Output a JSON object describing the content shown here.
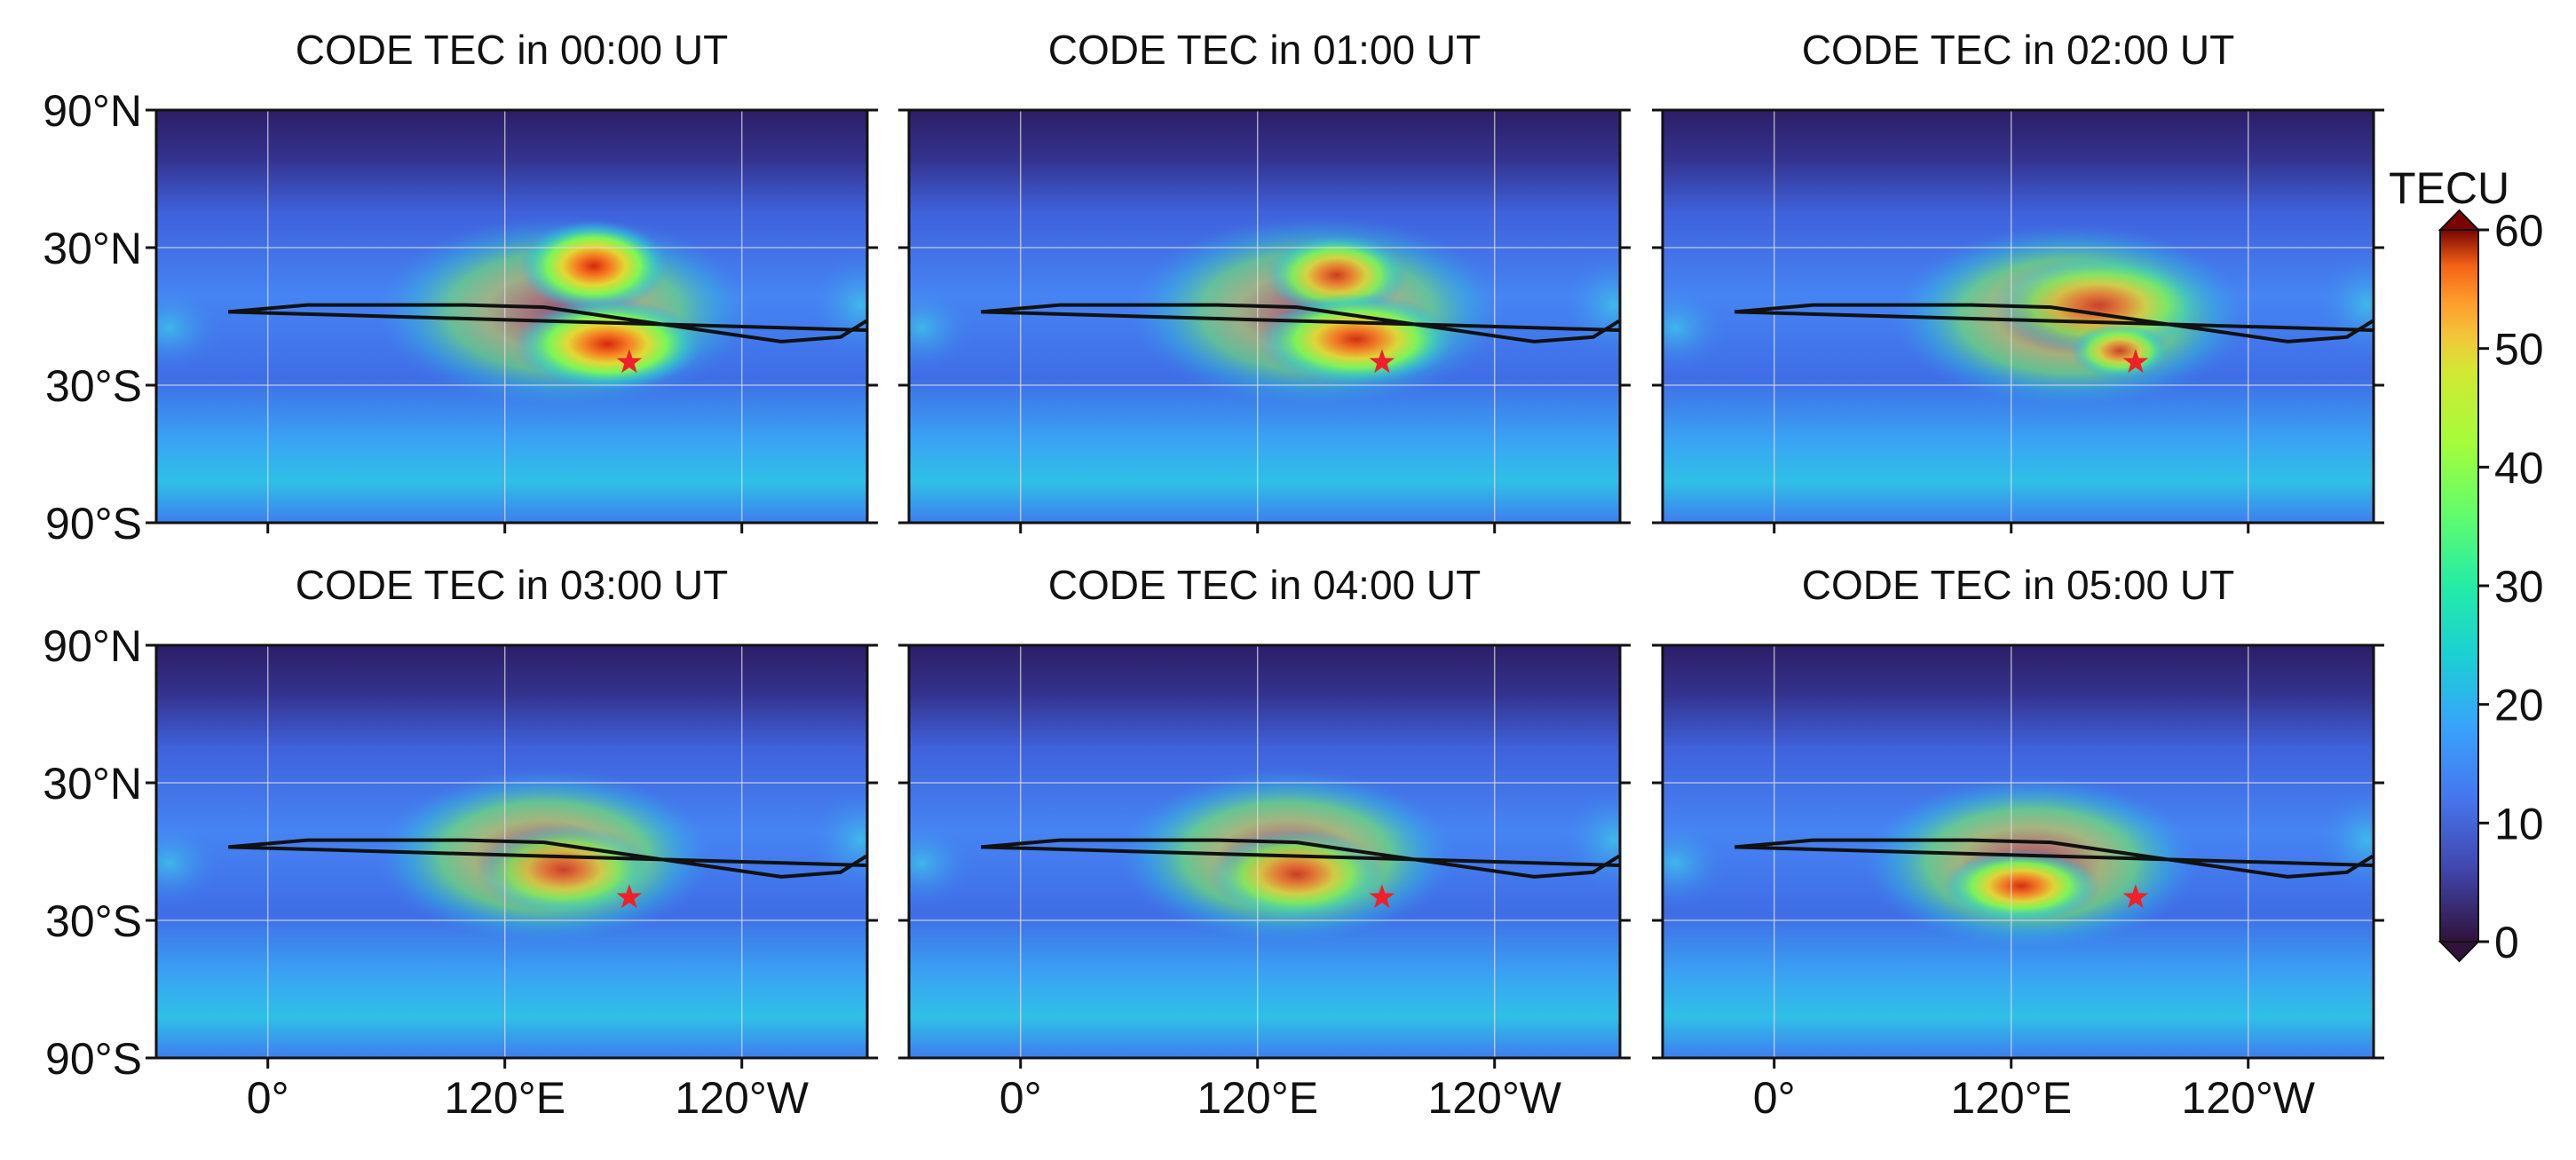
{
  "figure": {
    "panels": [
      {
        "title": "CODE TEC in 00:00 UT"
      },
      {
        "title": "CODE TEC in 01:00 UT"
      },
      {
        "title": "CODE TEC in 02:00 UT"
      },
      {
        "title": "CODE TEC in 03:00 UT"
      },
      {
        "title": "CODE TEC in 04:00 UT"
      },
      {
        "title": "CODE TEC in 05:00 UT"
      }
    ],
    "lat_ticks": [
      {
        "value": 90,
        "label": "90°N"
      },
      {
        "value": 30,
        "label": "30°N"
      },
      {
        "value": -30,
        "label": "30°S"
      },
      {
        "value": -90,
        "label": "90°S"
      }
    ],
    "lon_ticks": [
      {
        "value": 0,
        "label": "0°"
      },
      {
        "value": 120,
        "label": "120°E"
      },
      {
        "value": -120,
        "label": "120°W"
      }
    ],
    "colorbar": {
      "label": "TECU",
      "lim": [
        0,
        60
      ],
      "ticks": [
        0,
        10,
        20,
        30,
        40,
        50,
        60
      ]
    }
  }
}
